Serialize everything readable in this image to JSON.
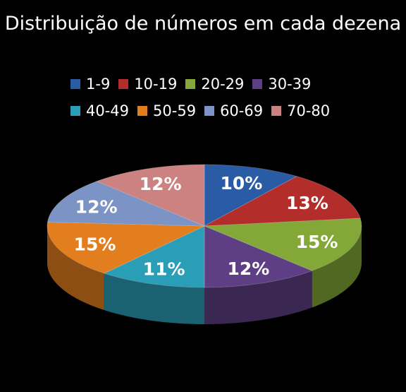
{
  "chart_data": {
    "type": "pie",
    "title": "Distribuição de números em cada dezena",
    "categories": [
      "1-9",
      "10-19",
      "20-29",
      "30-39",
      "40-49",
      "50-59",
      "60-69",
      "70-80"
    ],
    "values": [
      10,
      13,
      15,
      12,
      11,
      15,
      12,
      12
    ],
    "labels": [
      "10%",
      "13%",
      "15%",
      "12%",
      "11%",
      "15%",
      "12%",
      "12%"
    ],
    "colors": [
      "#2A5BA5",
      "#B32E2B",
      "#83A838",
      "#5E3F85",
      "#2A9DB7",
      "#E37E1F",
      "#7C94C5",
      "#CC8280"
    ],
    "legend_position": "top",
    "style": "3d-pie"
  }
}
